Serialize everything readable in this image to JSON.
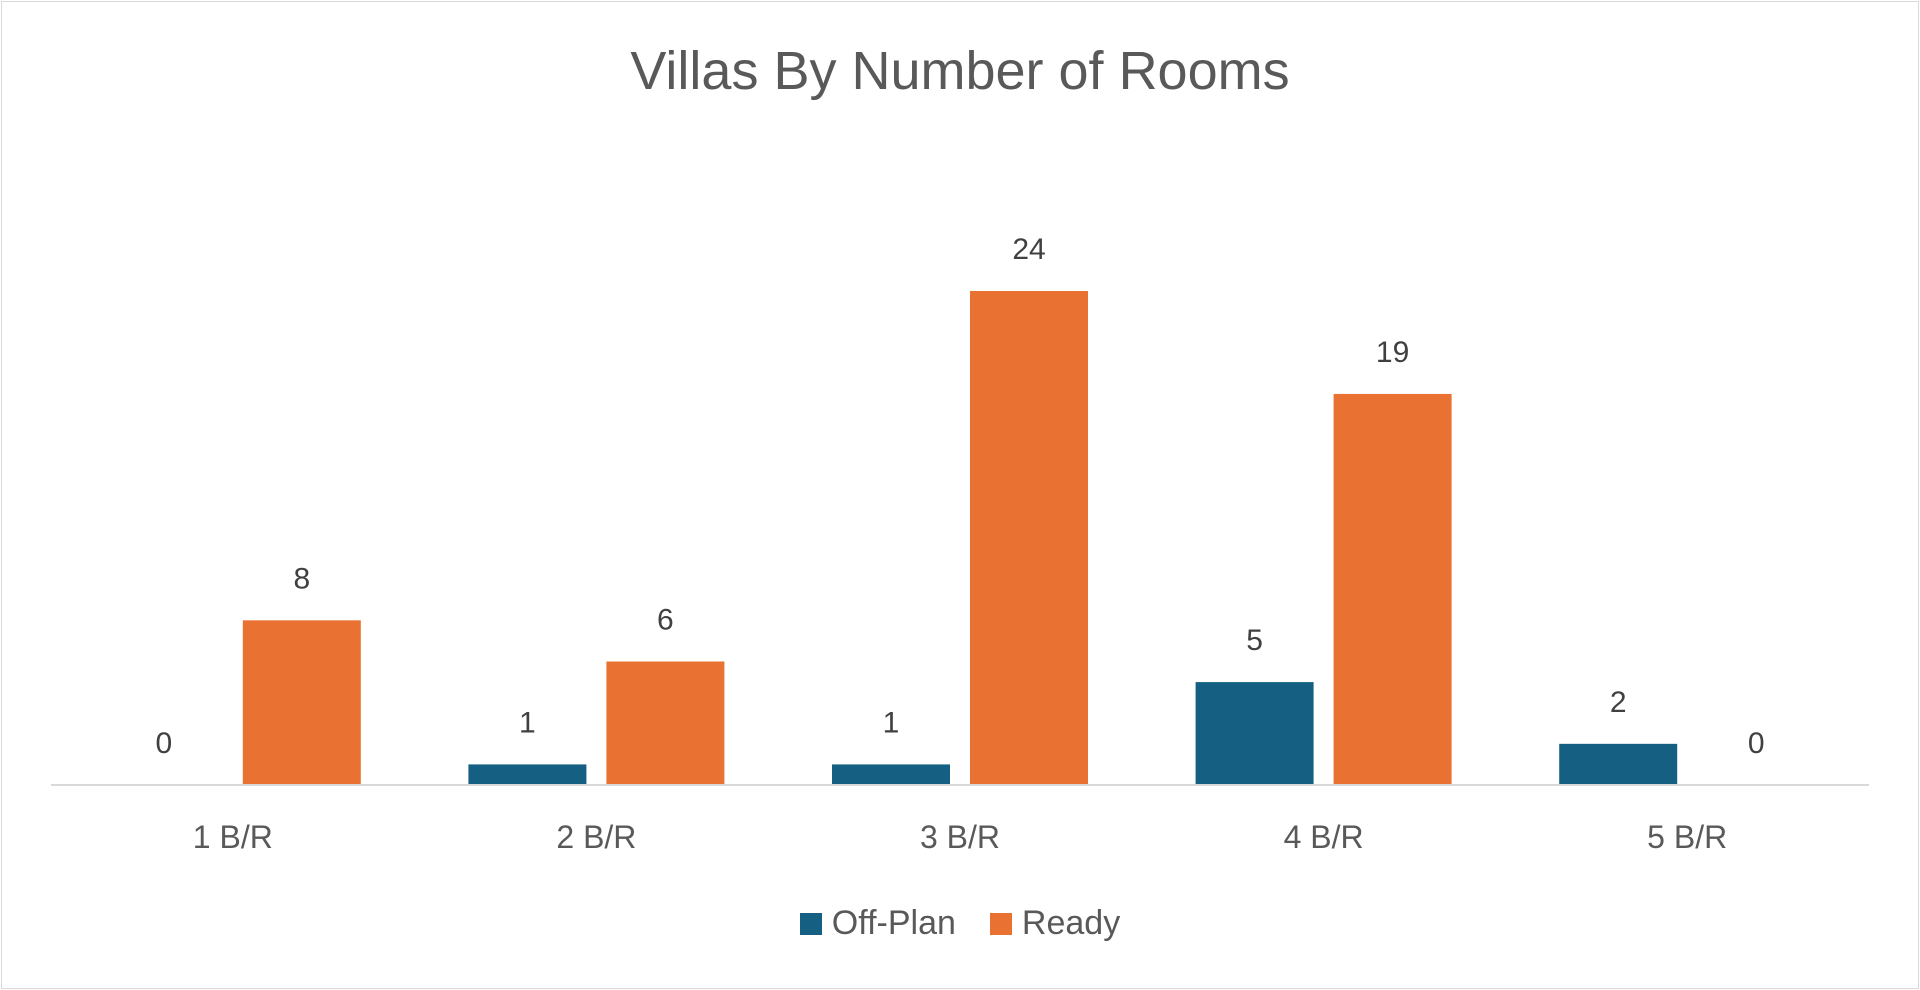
{
  "chart_data": {
    "type": "bar",
    "title": "Villas By Number of Rooms",
    "xlabel": "",
    "ylabel": "",
    "categories": [
      "1 B/R",
      "2 B/R",
      "3 B/R",
      "4 B/R",
      "5 B/R"
    ],
    "series": [
      {
        "name": "Off-Plan",
        "values": [
          0,
          1,
          1,
          5,
          2
        ],
        "color": "#156082"
      },
      {
        "name": "Ready",
        "values": [
          8,
          6,
          24,
          19,
          0
        ],
        "color": "#E97132"
      }
    ],
    "ylim": [
      0,
      24
    ],
    "data_labels": true,
    "gridlines": false,
    "legend_position": "bottom"
  }
}
